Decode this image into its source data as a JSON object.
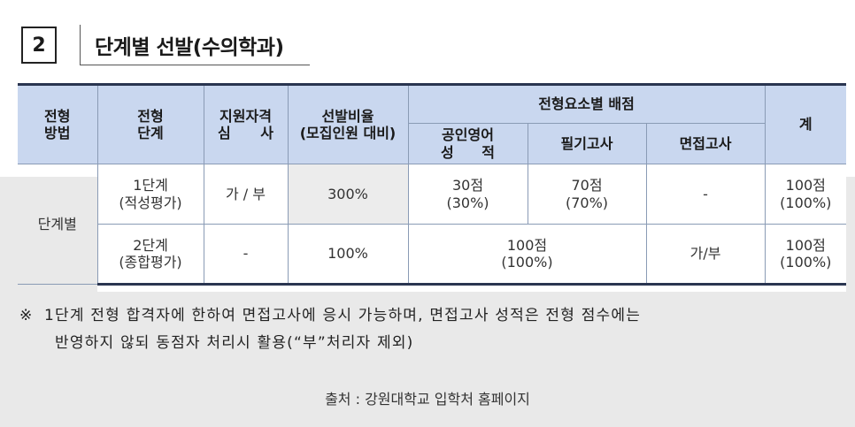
{
  "section": {
    "number": "2",
    "title": "단계별 선발(수의학과)"
  },
  "table": {
    "header": {
      "method": [
        "전형",
        "방법"
      ],
      "stage": [
        "전형",
        "단계"
      ],
      "eligibility": [
        "지원자격",
        "심 사"
      ],
      "ratio": [
        "선발비율",
        "(모집인원 대비)"
      ],
      "element_group": "전형요소별 배점",
      "english": [
        "공인영어",
        "성 적"
      ],
      "written": "필기고사",
      "interview": "면접고사",
      "total": "계"
    },
    "method_value": "단계별",
    "rows": [
      {
        "stage": [
          "1단계",
          "(적성평가)"
        ],
        "eligibility": "가 / 부",
        "ratio": "300%",
        "english": [
          "30점",
          "(30%)"
        ],
        "written": [
          "70점",
          "(70%)"
        ],
        "interview": "-",
        "total": [
          "100점",
          "(100%)"
        ]
      },
      {
        "stage": [
          "2단계",
          "(종합평가)"
        ],
        "eligibility": "-",
        "ratio": "100%",
        "english_written": [
          "100점",
          "(100%)"
        ],
        "interview": "가/부",
        "total": [
          "100점",
          "(100%)"
        ]
      }
    ]
  },
  "note": {
    "mark": "※",
    "line1": "1단계 전형 합격자에 한하여 면접고사에 응시 가능하며, 면접고사 성적은 전형 점수에는",
    "line2": "반영하지 않되 동점자 처리시 활용(“부”처리자 제외)"
  },
  "source": "출처 : 강원대학교 입학처 홈페이지"
}
